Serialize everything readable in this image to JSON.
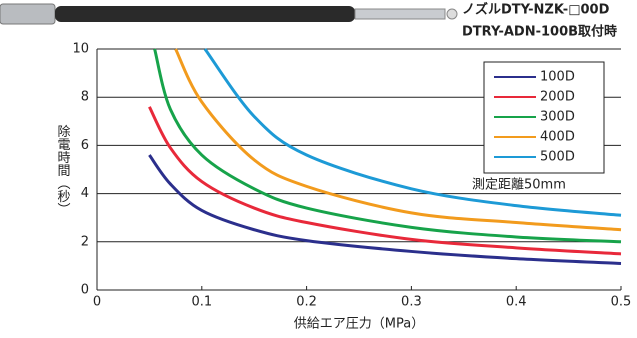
{
  "header": {
    "line1": "ノズルDTY-NZK-□00D",
    "line2": "DTRY-ADN-100B取付時"
  },
  "chart_data": {
    "type": "line",
    "x_label": "供給エア圧力（MPa）",
    "y_label": "除電時間（秒）",
    "annotation": "測定距離50mm",
    "xlim": [
      0,
      0.5
    ],
    "ylim": [
      0,
      10
    ],
    "xticks": [
      0,
      0.1,
      0.2,
      0.3,
      0.4,
      0.5
    ],
    "yticks": [
      0,
      2,
      4,
      6,
      8,
      10
    ],
    "grid": true,
    "legend": "upper right",
    "series": [
      {
        "name": "100D",
        "color": "#2b2f8c",
        "x": [
          0.05,
          0.07,
          0.1,
          0.15,
          0.2,
          0.3,
          0.4,
          0.5
        ],
        "values": [
          5.6,
          4.4,
          3.3,
          2.5,
          2.05,
          1.6,
          1.3,
          1.1
        ]
      },
      {
        "name": "200D",
        "color": "#e8293a",
        "x": [
          0.05,
          0.07,
          0.1,
          0.15,
          0.2,
          0.3,
          0.4,
          0.5
        ],
        "values": [
          7.6,
          5.9,
          4.5,
          3.4,
          2.8,
          2.1,
          1.75,
          1.5
        ]
      },
      {
        "name": "300D",
        "color": "#17a34a",
        "x": [
          0.055,
          0.07,
          0.1,
          0.15,
          0.2,
          0.3,
          0.4,
          0.5
        ],
        "values": [
          10,
          7.5,
          5.6,
          4.2,
          3.4,
          2.6,
          2.2,
          2.0
        ]
      },
      {
        "name": "400D",
        "color": "#f29b1d",
        "x": [
          0.075,
          0.1,
          0.15,
          0.2,
          0.3,
          0.4,
          0.5
        ],
        "values": [
          10,
          7.8,
          5.4,
          4.3,
          3.2,
          2.8,
          2.5
        ]
      },
      {
        "name": "500D",
        "color": "#1d9ad6",
        "x": [
          0.103,
          0.15,
          0.2,
          0.3,
          0.4,
          0.5
        ],
        "values": [
          10,
          7.2,
          5.6,
          4.2,
          3.5,
          3.1
        ]
      }
    ]
  }
}
